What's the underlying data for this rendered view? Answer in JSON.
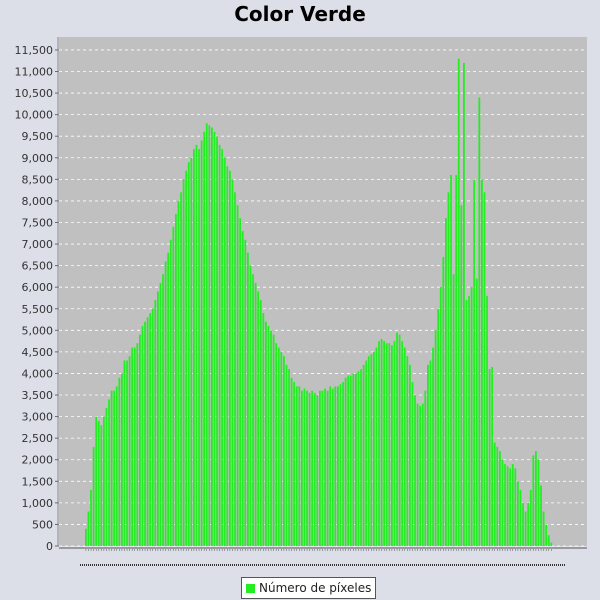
{
  "chart_data": {
    "type": "bar",
    "title": "Color Verde",
    "xlabel": "",
    "ylabel": "",
    "ylim": [
      0,
      11800
    ],
    "yticks": [
      0,
      500,
      1000,
      1500,
      2000,
      2500,
      3000,
      3500,
      4000,
      4500,
      5000,
      5500,
      6000,
      6500,
      7000,
      7500,
      8000,
      8500,
      9000,
      9500,
      10000,
      10500,
      11000,
      11500
    ],
    "ytick_labels": [
      "0",
      "500",
      "1,000",
      "1,500",
      "2,000",
      "2,500",
      "3,000",
      "3,500",
      "4,000",
      "4,500",
      "5,000",
      "5,500",
      "6,000",
      "6,500",
      "7,000",
      "7,500",
      "8,000",
      "8,500",
      "9,000",
      "9,500",
      "10,000",
      "10,500",
      "11,000",
      "11,500"
    ],
    "grid": true,
    "legend_position": "bottom",
    "background_color": "#c0c0c0",
    "bar_color": "#22ee22",
    "series": [
      {
        "name": "Número de píxeles",
        "values": [
          400,
          800,
          1300,
          2300,
          3000,
          2900,
          2800,
          3000,
          3200,
          3400,
          3600,
          3600,
          3700,
          3900,
          4000,
          4300,
          4300,
          4400,
          4600,
          4600,
          4700,
          4900,
          5100,
          5200,
          5300,
          5400,
          5500,
          5700,
          5900,
          6100,
          6300,
          6600,
          6800,
          7100,
          7400,
          7700,
          8000,
          8200,
          8500,
          8700,
          8900,
          9000,
          9200,
          9300,
          9200,
          9400,
          9600,
          9800,
          9750,
          9700,
          9600,
          9500,
          9300,
          9200,
          9000,
          8800,
          8700,
          8500,
          8200,
          7900,
          7600,
          7300,
          7100,
          6800,
          6500,
          6300,
          6100,
          5900,
          5700,
          5400,
          5200,
          5100,
          5000,
          4900,
          4700,
          4600,
          4500,
          4400,
          4200,
          4100,
          3900,
          3800,
          3700,
          3700,
          3600,
          3650,
          3600,
          3550,
          3600,
          3550,
          3500,
          3600,
          3600,
          3650,
          3600,
          3700,
          3650,
          3700,
          3700,
          3750,
          3800,
          3900,
          3950,
          3950,
          4000,
          4000,
          4050,
          4100,
          4200,
          4300,
          4400,
          4450,
          4500,
          4600,
          4750,
          4800,
          4750,
          4700,
          4700,
          4650,
          4750,
          4950,
          4900,
          4750,
          4600,
          4400,
          4200,
          3800,
          3500,
          3300,
          3250,
          3300,
          3600,
          4200,
          4300,
          4600,
          5000,
          5500,
          6000,
          6700,
          7600,
          8200,
          8600,
          6300,
          8600,
          11300,
          7900,
          11200,
          5700,
          5800,
          6000,
          8500,
          6200,
          10400,
          8500,
          8200,
          5800,
          4100,
          4150,
          2400,
          2300,
          2200,
          2000,
          1900,
          1850,
          1800,
          1900,
          1800,
          1500,
          1300,
          1000,
          800,
          1000,
          1300,
          2100,
          2200,
          2000,
          1400,
          800,
          500,
          250,
          80
        ]
      }
    ]
  }
}
